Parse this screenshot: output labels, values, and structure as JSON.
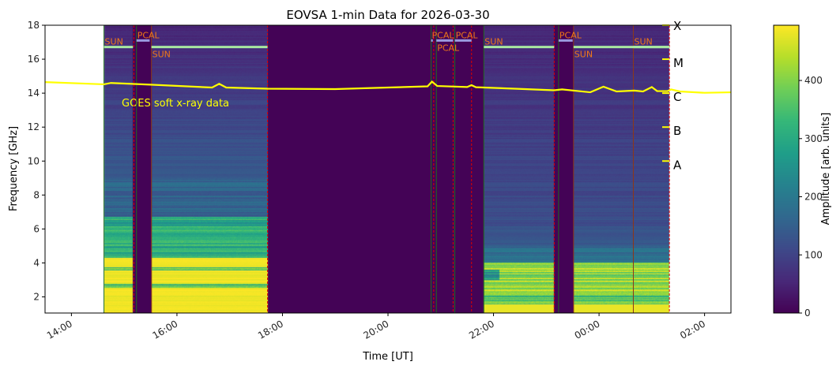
{
  "chart_data": {
    "type": "heatmap",
    "title": "EOVSA 1-min Data for 2026-03-30",
    "xlabel": "Time [UT]",
    "ylabel": "Frequency [GHz]",
    "xlim": [
      "13:30",
      "02:30"
    ],
    "ylim": [
      1.05,
      18
    ],
    "xticks": [
      "14:00",
      "16:00",
      "18:00",
      "20:00",
      "22:00",
      "00:00",
      "02:00"
    ],
    "yticks": [
      2,
      4,
      6,
      8,
      10,
      12,
      14,
      16,
      18
    ],
    "colorbar": {
      "label": "Amplitude [arb. units]",
      "range": [
        0,
        495
      ],
      "ticks": [
        0,
        100,
        200,
        300,
        400
      ],
      "colormap": "viridis"
    },
    "spectrogram_span": [
      "14:37",
      "01:20"
    ],
    "segments": [
      {
        "start": "14:37",
        "end": "15:10",
        "type": "SUN",
        "profile": "early"
      },
      {
        "start": "15:14",
        "end": "15:29",
        "type": "PCAL",
        "profile": "off"
      },
      {
        "start": "15:31",
        "end": "17:43",
        "type": "SUN",
        "profile": "early"
      },
      {
        "start": "17:43",
        "end": "21:49",
        "type": "none",
        "profile": "off"
      },
      {
        "start": "21:49",
        "end": "23:09",
        "type": "SUN",
        "profile": "late"
      },
      {
        "start": "23:14",
        "end": "23:30",
        "type": "PCAL",
        "profile": "off"
      },
      {
        "start": "23:31",
        "end": "01:20",
        "type": "SUN",
        "profile": "late"
      }
    ],
    "scan_labels": [
      {
        "text": "SUN",
        "start": "14:37",
        "end": "15:10",
        "kind": "sun"
      },
      {
        "text": "PCAL",
        "start": "15:14",
        "end": "15:29",
        "kind": "pcal"
      },
      {
        "text": "SUN",
        "start": "15:31",
        "end": "17:43",
        "kind": "sun"
      },
      {
        "text": "PCAL",
        "start": "20:49",
        "end": "20:51",
        "kind": "pcal"
      },
      {
        "text": "PCAL",
        "start": "20:55",
        "end": "21:14",
        "kind": "pcal"
      },
      {
        "text": "PCAL",
        "start": "21:16",
        "end": "21:35",
        "kind": "pcal"
      },
      {
        "text": "SUN",
        "start": "21:49",
        "end": "23:09",
        "kind": "sun"
      },
      {
        "text": "PCAL",
        "start": "23:14",
        "end": "23:30",
        "kind": "pcal"
      },
      {
        "text": "SUN",
        "start": "23:31",
        "end": "01:20",
        "kind": "sun"
      },
      {
        "text": "SUN",
        "start": "00:39",
        "end": "01:20",
        "kind": "sun"
      }
    ],
    "markers": {
      "red_dashed": [
        "15:11",
        "17:43",
        "20:52",
        "21:14",
        "21:35",
        "23:09",
        "00:39",
        "01:20"
      ],
      "green_solid": [
        "14:37",
        "15:14",
        "20:49",
        "20:55",
        "21:16",
        "21:49",
        "23:14"
      ],
      "brown_solid": [
        "15:31",
        "23:31",
        "00:39"
      ]
    },
    "goes": {
      "label": "GOES soft x-ray data",
      "color": "#ffff00",
      "classes": [
        {
          "label": "X",
          "value": 18
        },
        {
          "label": "M",
          "value": 16
        },
        {
          "label": "C",
          "value": 14
        },
        {
          "label": "B",
          "value": 12
        },
        {
          "label": "A",
          "value": 10
        }
      ],
      "points": [
        [
          "13:30",
          14.65
        ],
        [
          "14:37",
          14.52
        ],
        [
          "14:45",
          14.6
        ],
        [
          "15:30",
          14.5
        ],
        [
          "16:40",
          14.33
        ],
        [
          "16:48",
          14.55
        ],
        [
          "16:56",
          14.33
        ],
        [
          "17:43",
          14.26
        ],
        [
          "19:00",
          14.24
        ],
        [
          "20:00",
          14.33
        ],
        [
          "20:45",
          14.4
        ],
        [
          "20:50",
          14.68
        ],
        [
          "20:56",
          14.42
        ],
        [
          "21:30",
          14.36
        ],
        [
          "21:35",
          14.47
        ],
        [
          "21:40",
          14.35
        ],
        [
          "22:30",
          14.25
        ],
        [
          "23:09",
          14.17
        ],
        [
          "23:18",
          14.22
        ],
        [
          "23:50",
          14.05
        ],
        [
          "00:05",
          14.38
        ],
        [
          "00:20",
          14.1
        ],
        [
          "00:40",
          14.15
        ],
        [
          "00:50",
          14.1
        ],
        [
          "01:00",
          14.36
        ],
        [
          "01:06",
          14.12
        ],
        [
          "01:18",
          14.12
        ],
        [
          "01:22",
          14.22
        ],
        [
          "01:32",
          14.1
        ],
        [
          "02:00",
          14.02
        ],
        [
          "02:30",
          14.05
        ]
      ]
    }
  }
}
